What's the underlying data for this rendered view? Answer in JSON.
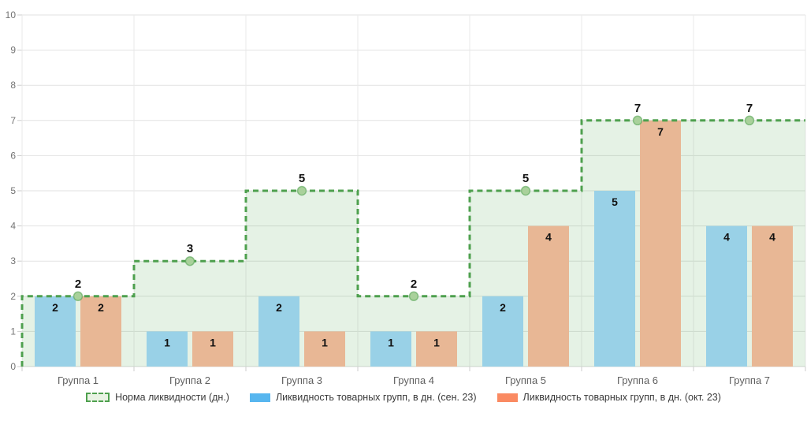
{
  "chart_data": {
    "type": "bar",
    "title": "",
    "categories": [
      "Группа 1",
      "Группа 2",
      "Группа 3",
      "Группа 4",
      "Группа 5",
      "Группа 6",
      "Группа 7"
    ],
    "series": [
      {
        "name": "Норма ликвидности (дн.)",
        "type": "step-line-area",
        "values": [
          2,
          3,
          5,
          2,
          5,
          7,
          7
        ],
        "line_color": "#4ea04e",
        "fill_color": "#53a653",
        "fill_opacity": 0.15,
        "marker_fill": "#a9d19b",
        "legend_swatch_bg": "#e9f3e4"
      },
      {
        "name": "Ликвидность товарных групп, в дн. (сен. 23)",
        "type": "bar",
        "values": [
          2,
          1,
          2,
          1,
          2,
          5,
          4
        ],
        "bar_color": "#99d1e7",
        "legend_swatch_color": "#57b6ef"
      },
      {
        "name": "Ликвидность товарных групп, в дн. (окт. 23)",
        "type": "bar",
        "values": [
          2,
          1,
          1,
          1,
          4,
          7,
          4
        ],
        "bar_color": "#e8b795",
        "legend_swatch_color": "#fa8a62"
      }
    ],
    "ylim": [
      0,
      10
    ],
    "ytick_step": 1,
    "yticks": [
      "0",
      "1",
      "2",
      "3",
      "4",
      "5",
      "6",
      "7",
      "8",
      "9",
      "10"
    ],
    "grid": true,
    "value_labels_shown": true,
    "legend_position": "bottom",
    "colors": {
      "grid_line": "#e2e2e2",
      "grid_line_vertical": "#e9e9e9",
      "axis_line": "#d8d8d8",
      "tick_mark": "#cccccc",
      "y_label_text": "#737373",
      "x_label_text": "#606060",
      "value_label_text": "#111111"
    }
  }
}
